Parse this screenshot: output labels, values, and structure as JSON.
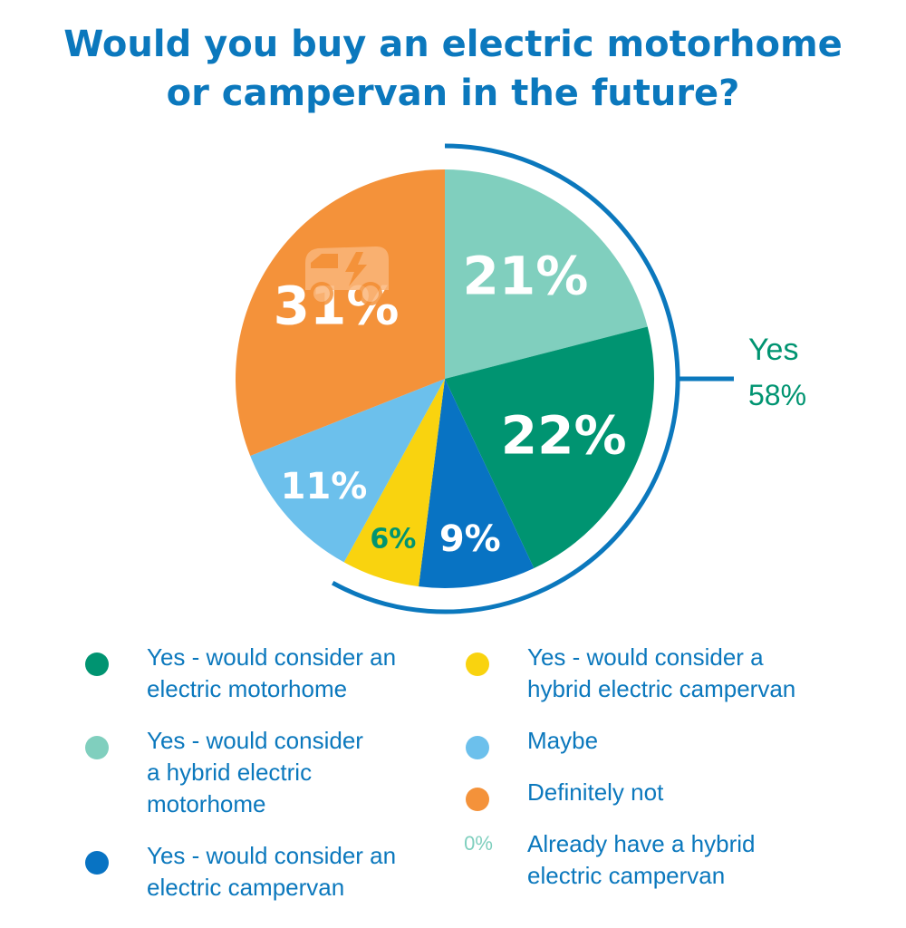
{
  "title": {
    "line1": "Would you buy an electric motorhome",
    "line2": "or campervan in the future?"
  },
  "chart_data": {
    "type": "pie",
    "start_angle_deg": 0,
    "direction": "clockwise",
    "slices": [
      {
        "key": "hybrid_motorhome",
        "label": "21%",
        "value": 21,
        "color": "#80cfbe",
        "label_color": "#ffffff"
      },
      {
        "key": "electric_motorhome",
        "label": "22%",
        "value": 22,
        "color": "#009471",
        "label_color": "#ffffff"
      },
      {
        "key": "electric_campervan",
        "label": "9%",
        "value": 9,
        "color": "#0873c3",
        "label_color": "#ffffff"
      },
      {
        "key": "hybrid_campervan",
        "label": "6%",
        "value": 6,
        "color": "#f9d30f",
        "label_color": "#009471"
      },
      {
        "key": "maybe",
        "label": "11%",
        "value": 11,
        "color": "#6cc0ec",
        "label_color": "#ffffff"
      },
      {
        "key": "definitely_not",
        "label": "31%",
        "value": 31,
        "color": "#f4923a",
        "label_color": "#ffffff"
      }
    ],
    "yes_bracket": {
      "label": "Yes",
      "value_label": "58%",
      "color": "#0b78bd",
      "label_color": "#009471"
    },
    "icon": "electric-van-icon"
  },
  "legend": {
    "left": [
      {
        "text": "Yes - would consider an\nelectric motorhome",
        "color": "#009471"
      },
      {
        "text": "Yes - would consider\na hybrid electric\nmotorhome",
        "color": "#80cfbe"
      },
      {
        "text": "Yes - would consider an\nelectric campervan",
        "color": "#0873c3"
      }
    ],
    "right": [
      {
        "text": "Yes - would consider a\nhybrid electric campervan",
        "color": "#f9d30f"
      },
      {
        "text": "Maybe",
        "color": "#6cc0ec"
      },
      {
        "text": "Definitely not",
        "color": "#f4923a"
      },
      {
        "text": "Already have a hybrid\nelectric campervan",
        "pct": "0%"
      }
    ]
  }
}
